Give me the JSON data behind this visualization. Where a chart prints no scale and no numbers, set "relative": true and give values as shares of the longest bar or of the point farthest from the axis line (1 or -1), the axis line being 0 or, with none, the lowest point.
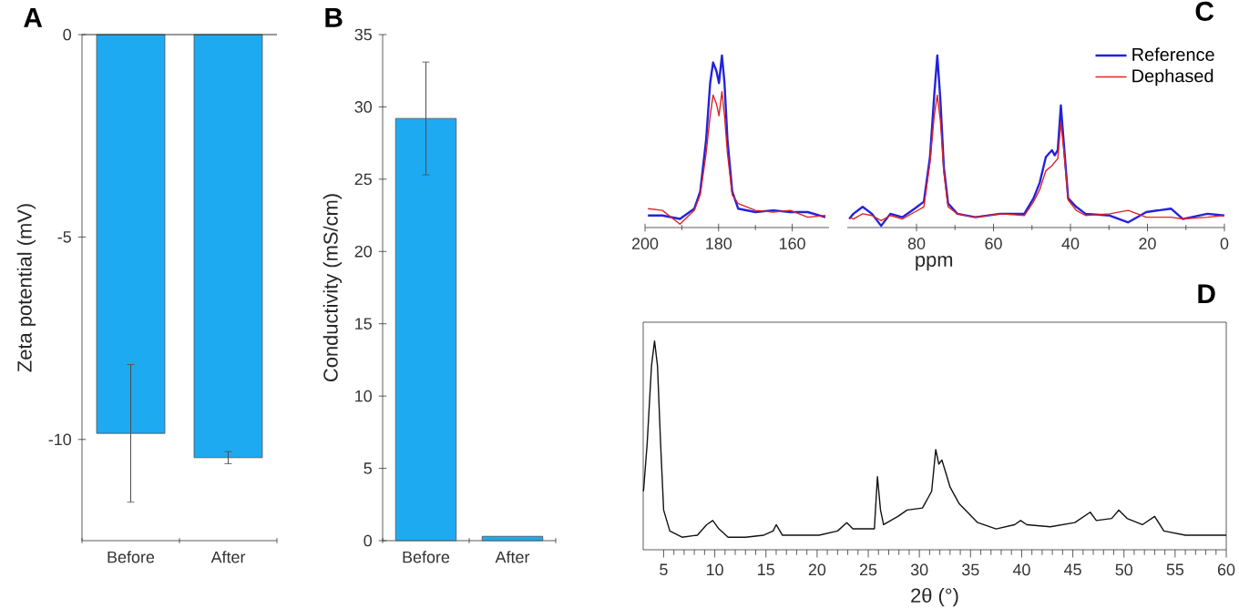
{
  "chart_data": [
    {
      "type": "bar",
      "title": "A",
      "ylabel": "Zeta potential (mV)",
      "categories": [
        "Before",
        "After"
      ],
      "values": [
        -9.85,
        -10.45
      ],
      "errors": [
        1.7,
        0.15
      ],
      "color": "#1eaaf1",
      "ylim": [
        -12.5,
        0
      ],
      "yticks": [
        0,
        -5,
        -10
      ]
    },
    {
      "type": "bar",
      "title": "B",
      "ylabel": "Conductivity (mS/cm)",
      "categories": [
        "Before",
        "After"
      ],
      "values": [
        29.2,
        0.3
      ],
      "errors": [
        3.9,
        null
      ],
      "color": "#1eaaf1",
      "ylim": [
        0,
        35
      ],
      "yticks": [
        0,
        5,
        10,
        15,
        20,
        25,
        30,
        35
      ]
    },
    {
      "type": "line",
      "relative": true,
      "xlim": [
        200,
        150
      ],
      "xticks": [
        200,
        180,
        160
      ],
      "series": [
        {
          "color": "#2222dd",
          "x": [
            199.2,
            195.3,
            190.5,
            186.6,
            185,
            183.4,
            182.3,
            181.5,
            180.6,
            179.9,
            179.1,
            178.4,
            177.6,
            176.3,
            174.7,
            170,
            165.2,
            160.5,
            155.8,
            151
          ],
          "values": [
            0.07,
            0.07,
            0.05,
            0.11,
            0.21,
            0.51,
            0.84,
            0.96,
            0.91,
            0.84,
            1.0,
            0.84,
            0.51,
            0.21,
            0.11,
            0.09,
            0.1,
            0.09,
            0.09,
            0.06
          ]
        },
        {
          "color": "#e02222",
          "x": [
            199.2,
            195.3,
            190.5,
            186.6,
            185,
            183.4,
            182.3,
            181.5,
            180.6,
            179.9,
            179.1,
            178.4,
            177.6,
            176.3,
            174.7,
            170,
            165.2,
            160.5,
            155.8,
            151
          ],
          "values": [
            0.11,
            0.1,
            0.02,
            0.1,
            0.19,
            0.43,
            0.65,
            0.77,
            0.72,
            0.65,
            0.79,
            0.65,
            0.43,
            0.19,
            0.14,
            0.1,
            0.09,
            0.1,
            0.06,
            0.07
          ]
        }
      ]
    },
    {
      "type": "line",
      "title": "C",
      "xlabel": "ppm",
      "relative": true,
      "xlim": [
        98,
        0
      ],
      "xticks": [
        80,
        60,
        40,
        20,
        0
      ],
      "legend": "top right",
      "series": [
        {
          "name": "Reference",
          "color": "#2222dd",
          "x": [
            97.5,
            96.4,
            94.0,
            91.6,
            89.2,
            86.8,
            83.7,
            80.5,
            78.1,
            76.5,
            75.4,
            74.6,
            73.8,
            72.9,
            71.8,
            69.4,
            64.7,
            58.3,
            52.0,
            49.6,
            48.0,
            46.4,
            44.8,
            44.1,
            43.3,
            42.5,
            41.7,
            40.6,
            38.5,
            36.1,
            29.8,
            25.0,
            20.3,
            13.9,
            10.8,
            4.4,
            0
          ],
          "values": [
            0.05,
            0.08,
            0.12,
            0.08,
            0.01,
            0.08,
            0.06,
            0.11,
            0.15,
            0.41,
            0.77,
            1.0,
            0.74,
            0.35,
            0.14,
            0.08,
            0.06,
            0.08,
            0.08,
            0.17,
            0.26,
            0.41,
            0.45,
            0.42,
            0.45,
            0.71,
            0.48,
            0.17,
            0.12,
            0.08,
            0.07,
            0.03,
            0.09,
            0.11,
            0.05,
            0.08,
            0.07
          ]
        },
        {
          "name": "Dephased",
          "color": "#e02222",
          "x": [
            97.5,
            96.4,
            94.0,
            91.6,
            89.2,
            86.8,
            83.7,
            80.5,
            78.1,
            76.5,
            75.4,
            74.6,
            73.8,
            72.9,
            71.8,
            69.4,
            64.7,
            58.3,
            52.0,
            49.6,
            48.0,
            46.4,
            44.8,
            44.1,
            43.3,
            42.5,
            41.7,
            40.6,
            38.5,
            36.1,
            29.8,
            25.0,
            20.3,
            13.9,
            10.8,
            4.4,
            0
          ],
          "values": [
            0.06,
            0.05,
            0.08,
            0.07,
            0.04,
            0.07,
            0.05,
            0.09,
            0.12,
            0.38,
            0.65,
            0.77,
            0.62,
            0.32,
            0.12,
            0.08,
            0.06,
            0.08,
            0.07,
            0.15,
            0.22,
            0.33,
            0.36,
            0.38,
            0.4,
            0.61,
            0.44,
            0.16,
            0.1,
            0.07,
            0.08,
            0.1,
            0.06,
            0.06,
            0.05,
            0.06,
            0.07
          ]
        }
      ]
    },
    {
      "type": "line",
      "title": "D",
      "xlabel": "2θ (°)",
      "relative": true,
      "xlim": [
        3,
        60
      ],
      "xticks": [
        5,
        10,
        15,
        20,
        25,
        30,
        35,
        40,
        45,
        50,
        55,
        60
      ],
      "series": [
        {
          "color": "#111111",
          "x": [
            3.03,
            3.39,
            3.81,
            4.11,
            4.4,
            4.7,
            5.0,
            5.6,
            6.8,
            8.3,
            9.2,
            9.8,
            10.4,
            11.3,
            13.0,
            14.8,
            15.7,
            16.0,
            16.6,
            18.4,
            20.2,
            22.0,
            22.9,
            23.5,
            25.6,
            25.9,
            26.2,
            26.5,
            27.9,
            28.8,
            30.3,
            31.2,
            31.6,
            31.9,
            32.2,
            32.7,
            33.0,
            33.9,
            35.7,
            37.5,
            39.3,
            39.9,
            40.5,
            42.8,
            45.2,
            46.7,
            47.3,
            48.8,
            49.5,
            50.3,
            51.8,
            53.0,
            53.9,
            56.0,
            60.0
          ],
          "values": [
            0.28,
            0.51,
            0.88,
            1.0,
            0.88,
            0.51,
            0.19,
            0.09,
            0.06,
            0.07,
            0.12,
            0.14,
            0.1,
            0.06,
            0.06,
            0.07,
            0.09,
            0.12,
            0.07,
            0.07,
            0.07,
            0.09,
            0.13,
            0.1,
            0.1,
            0.35,
            0.19,
            0.12,
            0.16,
            0.19,
            0.2,
            0.28,
            0.48,
            0.41,
            0.43,
            0.35,
            0.3,
            0.22,
            0.13,
            0.1,
            0.12,
            0.14,
            0.12,
            0.11,
            0.13,
            0.18,
            0.14,
            0.15,
            0.19,
            0.15,
            0.12,
            0.16,
            0.09,
            0.07,
            0.07
          ]
        }
      ]
    }
  ]
}
